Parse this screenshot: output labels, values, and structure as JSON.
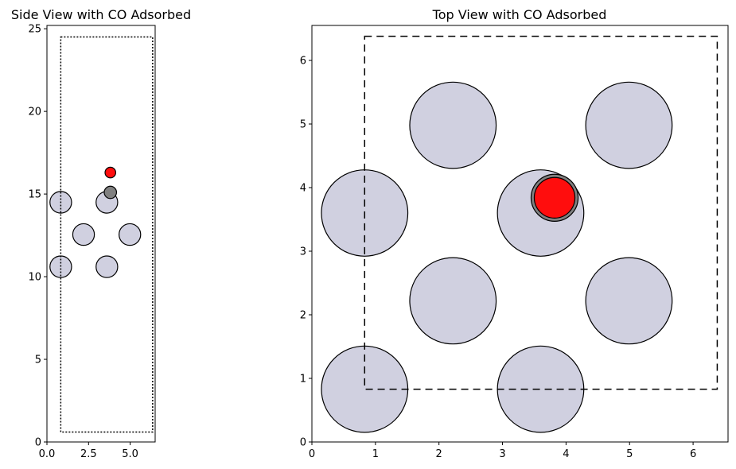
{
  "chart_data": [
    {
      "type": "scatter",
      "title": "Side View with CO Adsorbed",
      "xlabel": "",
      "ylabel": "",
      "xlim": [
        0,
        6.5
      ],
      "ylim": [
        0,
        25.2
      ],
      "xticks": [
        0.0,
        2.5,
        5.0
      ],
      "xtick_labels": [
        "0.0",
        "2.5",
        "5.0"
      ],
      "yticks": [
        0,
        5,
        10,
        15,
        20,
        25
      ],
      "ytick_labels": [
        "0",
        "5",
        "10",
        "15",
        "20",
        "25"
      ],
      "grid": false,
      "cell_outline": {
        "style": "dotted",
        "x": [
          0.83,
          6.35
        ],
        "y": [
          0.6,
          24.5
        ]
      },
      "atoms": [
        {
          "element": "Pt",
          "x": 0.83,
          "y": 10.6,
          "color": "#d0d0e0",
          "radius": 0.65
        },
        {
          "element": "Pt",
          "x": 3.6,
          "y": 10.6,
          "color": "#d0d0e0",
          "radius": 0.65
        },
        {
          "element": "Pt",
          "x": 2.2,
          "y": 12.55,
          "color": "#d0d0e0",
          "radius": 0.65
        },
        {
          "element": "Pt",
          "x": 4.98,
          "y": 12.55,
          "color": "#d0d0e0",
          "radius": 0.65
        },
        {
          "element": "Pt",
          "x": 0.83,
          "y": 14.5,
          "color": "#d0d0e0",
          "radius": 0.65
        },
        {
          "element": "Pt",
          "x": 3.6,
          "y": 14.5,
          "color": "#d0d0e0",
          "radius": 0.65
        },
        {
          "element": "C",
          "x": 3.81,
          "y": 15.1,
          "color": "#808080",
          "radius": 0.37
        },
        {
          "element": "O",
          "x": 3.81,
          "y": 16.3,
          "color": "#ff0d0d",
          "radius": 0.32
        }
      ]
    },
    {
      "type": "scatter",
      "title": "Top View with CO Adsorbed",
      "xlabel": "",
      "ylabel": "",
      "xlim": [
        0,
        6.55
      ],
      "ylim": [
        0,
        6.55
      ],
      "xticks": [
        0,
        1,
        2,
        3,
        4,
        5,
        6
      ],
      "xtick_labels": [
        "0",
        "1",
        "2",
        "3",
        "4",
        "5",
        "6"
      ],
      "yticks": [
        0,
        1,
        2,
        3,
        4,
        5,
        6
      ],
      "ytick_labels": [
        "0",
        "1",
        "2",
        "3",
        "4",
        "5",
        "6"
      ],
      "grid": false,
      "cell_outline": {
        "style": "dashed",
        "x": [
          0.83,
          6.38
        ],
        "y": [
          0.83,
          6.38
        ]
      },
      "atoms": [
        {
          "element": "Pt",
          "x": 0.83,
          "y": 0.83,
          "color": "#d0d0e0",
          "radius": 0.68
        },
        {
          "element": "Pt",
          "x": 3.6,
          "y": 0.83,
          "color": "#d0d0e0",
          "radius": 0.68
        },
        {
          "element": "Pt",
          "x": 2.22,
          "y": 2.22,
          "color": "#d0d0e0",
          "radius": 0.68
        },
        {
          "element": "Pt",
          "x": 4.99,
          "y": 2.22,
          "color": "#d0d0e0",
          "radius": 0.68
        },
        {
          "element": "Pt",
          "x": 0.83,
          "y": 3.6,
          "color": "#d0d0e0",
          "radius": 0.68
        },
        {
          "element": "Pt",
          "x": 3.6,
          "y": 3.6,
          "color": "#d0d0e0",
          "radius": 0.68
        },
        {
          "element": "Pt",
          "x": 2.22,
          "y": 4.98,
          "color": "#d0d0e0",
          "radius": 0.68
        },
        {
          "element": "Pt",
          "x": 4.99,
          "y": 4.98,
          "color": "#d0d0e0",
          "radius": 0.68
        },
        {
          "element": "C",
          "x": 3.82,
          "y": 3.84,
          "color": "#808080",
          "radius": 0.37
        },
        {
          "element": "O",
          "x": 3.82,
          "y": 3.84,
          "color": "#ff0d0d",
          "radius": 0.32
        }
      ]
    }
  ]
}
